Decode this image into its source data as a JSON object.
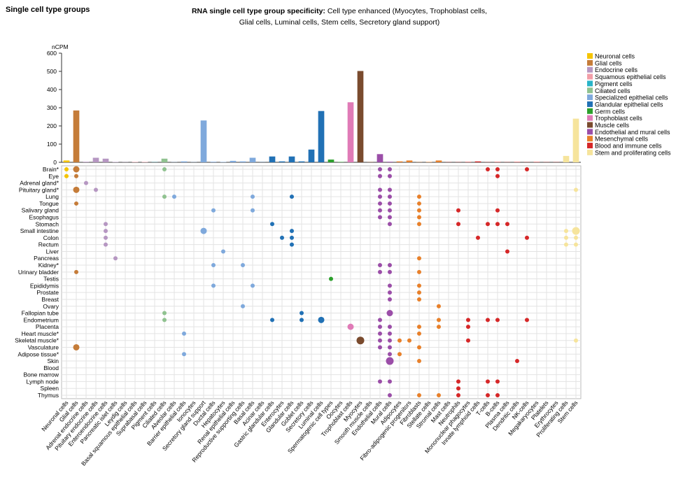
{
  "panel_title": "Single cell type groups",
  "chart_title_prefix": "RNA single cell type group specificity:",
  "chart_title_rest": " Cell type enhanced (Myocytes, Trophoblast cells, Glial cells, Luminal cells, Stem cells, Secretory gland support)",
  "chart_data": {
    "type": "bar",
    "ylabel": "nCPM",
    "ylim": [
      0,
      600
    ],
    "yticks": [
      0,
      100,
      200,
      300,
      400,
      500,
      600
    ],
    "legend_position": "right",
    "legend": [
      {
        "name": "Neuronal cells",
        "color": "#f5c400"
      },
      {
        "name": "Glial cells",
        "color": "#c57c39"
      },
      {
        "name": "Endocrine cells",
        "color": "#b697c2"
      },
      {
        "name": "Squamous epithelial cells",
        "color": "#f29ea8"
      },
      {
        "name": "Pigment cells",
        "color": "#28b4c8"
      },
      {
        "name": "Ciliated cells",
        "color": "#90c290"
      },
      {
        "name": "Specialized epithelial cells",
        "color": "#7fa9dc"
      },
      {
        "name": "Glandular epithelial cells",
        "color": "#2171b5"
      },
      {
        "name": "Germ cells",
        "color": "#2ca02c"
      },
      {
        "name": "Trophoblast cells",
        "color": "#e07bb7"
      },
      {
        "name": "Muscle cells",
        "color": "#7a4b2e"
      },
      {
        "name": "Endothelial and mural cells",
        "color": "#9b4ea8"
      },
      {
        "name": "Mesenchymal cells",
        "color": "#e8802a"
      },
      {
        "name": "Blood and immune cells",
        "color": "#d62728"
      },
      {
        "name": "Stem and proliferating cells",
        "color": "#f6e49c"
      }
    ],
    "categories": [
      "Neuronal cells",
      "Glial cells",
      "Adrenal endocrine cells",
      "Pituitary endocrine cells",
      "Enteroendocrine cells",
      "Pancreatic islet cells",
      "Leydig cells",
      "Basal squamous epithelial cells",
      "Suprabasal cells",
      "Pigment cells",
      "Ciliated cells",
      "Alveolar cells",
      "Barrier epithelial cells",
      "Ionocytes",
      "Secretory gland support",
      "Ductal cells",
      "Hepatocytes",
      "Renal epithelial cells",
      "Reproductive supporting cells",
      "Basal cells",
      "Acinar cells",
      "Gastric glandular cells",
      "Enterocytes",
      "Glandular cells",
      "Goblet cells",
      "Secretory cells",
      "Luminal cells",
      "Spermatogenic cell types",
      "Oocytes",
      "Trophoblast cells",
      "Myocytes",
      "Smooth muscle cells",
      "Endothelial cells",
      "Mural cells",
      "Adipocytes",
      "Fibro-adipogenic progenitors",
      "Fibroblasts",
      "Stellate cells",
      "Stromal cells",
      "Mast cells",
      "Neutrophils",
      "Mononuclear phagocytes",
      "Innate lymphoid cells",
      "T-cells",
      "B-cells",
      "Plasma cells",
      "Dendritic cells",
      "NK-cells",
      "Megakaryocytes",
      "Platelets",
      "Erythrocytes",
      "Proliferating cells",
      "Stem cells"
    ],
    "category_groups": [
      0,
      1,
      2,
      2,
      2,
      2,
      2,
      3,
      3,
      4,
      5,
      6,
      6,
      6,
      6,
      6,
      6,
      6,
      6,
      6,
      7,
      7,
      7,
      7,
      7,
      7,
      7,
      8,
      8,
      9,
      10,
      10,
      11,
      11,
      12,
      12,
      12,
      12,
      12,
      13,
      13,
      13,
      13,
      13,
      13,
      13,
      13,
      13,
      13,
      13,
      13,
      14,
      14
    ],
    "values": [
      10,
      285,
      3,
      25,
      20,
      2,
      1,
      2,
      2,
      1,
      20,
      1,
      5,
      1,
      230,
      3,
      2,
      8,
      5,
      25,
      1,
      32,
      5,
      32,
      5,
      70,
      282,
      15,
      2,
      330,
      502,
      2,
      45,
      3,
      5,
      10,
      1,
      2,
      10,
      1,
      1,
      2,
      5,
      1,
      2,
      1,
      2,
      1,
      2,
      1,
      1,
      35,
      240
    ],
    "tissues": [
      "Brain*",
      "Eye",
      "Adrenal gland*",
      "Pituitary gland*",
      "Lung",
      "Tongue",
      "Salivary gland",
      "Esophagus",
      "Stomach",
      "Small intestine",
      "Colon",
      "Rectum",
      "Liver",
      "Pancreas",
      "Kidney*",
      "Urinary bladder",
      "Testis",
      "Epididymis",
      "Prostate",
      "Breast",
      "Ovary",
      "Fallopian tube",
      "Endometrium",
      "Placenta",
      "Heart muscle*",
      "Skeletal muscle*",
      "Vasculature",
      "Adipose tissue*",
      "Skin",
      "Blood",
      "Bone marrow",
      "Lymph node",
      "Spleen",
      "Thymus"
    ],
    "dots": [
      [
        0,
        0,
        1
      ],
      [
        0,
        1,
        2
      ],
      [
        0,
        10,
        1
      ],
      [
        0,
        32,
        1
      ],
      [
        0,
        33,
        1
      ],
      [
        0,
        43,
        1
      ],
      [
        0,
        44,
        1
      ],
      [
        0,
        47,
        1
      ],
      [
        1,
        0,
        1
      ],
      [
        1,
        1,
        1
      ],
      [
        1,
        32,
        1
      ],
      [
        1,
        33,
        1
      ],
      [
        1,
        44,
        1
      ],
      [
        2,
        2,
        1
      ],
      [
        3,
        1,
        2
      ],
      [
        3,
        3,
        1
      ],
      [
        3,
        32,
        1
      ],
      [
        3,
        33,
        1
      ],
      [
        3,
        52,
        1
      ],
      [
        4,
        10,
        1
      ],
      [
        4,
        11,
        1
      ],
      [
        4,
        19,
        1
      ],
      [
        4,
        23,
        1
      ],
      [
        4,
        32,
        1
      ],
      [
        4,
        33,
        1
      ],
      [
        4,
        36,
        1
      ],
      [
        5,
        1,
        1
      ],
      [
        5,
        32,
        1
      ],
      [
        5,
        33,
        1
      ],
      [
        5,
        36,
        1
      ],
      [
        6,
        15,
        1
      ],
      [
        6,
        19,
        1
      ],
      [
        6,
        32,
        1
      ],
      [
        6,
        33,
        1
      ],
      [
        6,
        36,
        1
      ],
      [
        6,
        40,
        1
      ],
      [
        6,
        44,
        1
      ],
      [
        7,
        32,
        1
      ],
      [
        7,
        33,
        1
      ],
      [
        7,
        36,
        1
      ],
      [
        8,
        4,
        1
      ],
      [
        8,
        21,
        1
      ],
      [
        8,
        33,
        1
      ],
      [
        8,
        36,
        1
      ],
      [
        8,
        40,
        1
      ],
      [
        8,
        43,
        1
      ],
      [
        8,
        44,
        1
      ],
      [
        8,
        45,
        1
      ],
      [
        9,
        4,
        1
      ],
      [
        9,
        14,
        2
      ],
      [
        9,
        23,
        1
      ],
      [
        9,
        51,
        1
      ],
      [
        9,
        52,
        3
      ],
      [
        10,
        4,
        1
      ],
      [
        10,
        22,
        1
      ],
      [
        10,
        23,
        1
      ],
      [
        10,
        42,
        1
      ],
      [
        10,
        47,
        1
      ],
      [
        10,
        51,
        1
      ],
      [
        10,
        52,
        1
      ],
      [
        11,
        4,
        1
      ],
      [
        11,
        23,
        1
      ],
      [
        11,
        51,
        1
      ],
      [
        11,
        52,
        1
      ],
      [
        12,
        16,
        1
      ],
      [
        12,
        45,
        1
      ],
      [
        13,
        5,
        1
      ],
      [
        13,
        36,
        1
      ],
      [
        14,
        15,
        1
      ],
      [
        14,
        18,
        1
      ],
      [
        14,
        32,
        1
      ],
      [
        14,
        33,
        1
      ],
      [
        15,
        1,
        1
      ],
      [
        15,
        32,
        1
      ],
      [
        15,
        33,
        1
      ],
      [
        15,
        36,
        1
      ],
      [
        16,
        27,
        1
      ],
      [
        17,
        15,
        1
      ],
      [
        17,
        19,
        1
      ],
      [
        17,
        33,
        1
      ],
      [
        17,
        36,
        1
      ],
      [
        18,
        33,
        1
      ],
      [
        18,
        36,
        1
      ],
      [
        19,
        33,
        1
      ],
      [
        19,
        36,
        1
      ],
      [
        20,
        18,
        1
      ],
      [
        20,
        38,
        1
      ],
      [
        21,
        10,
        1
      ],
      [
        21,
        24,
        1
      ],
      [
        21,
        33,
        2
      ],
      [
        22,
        10,
        1
      ],
      [
        22,
        21,
        1
      ],
      [
        22,
        24,
        1
      ],
      [
        22,
        26,
        2
      ],
      [
        22,
        32,
        1
      ],
      [
        22,
        38,
        1
      ],
      [
        22,
        41,
        1
      ],
      [
        22,
        43,
        1
      ],
      [
        22,
        44,
        1
      ],
      [
        22,
        47,
        1
      ],
      [
        23,
        29,
        2
      ],
      [
        23,
        32,
        1
      ],
      [
        23,
        33,
        1
      ],
      [
        23,
        36,
        1
      ],
      [
        23,
        38,
        1
      ],
      [
        23,
        41,
        1
      ],
      [
        24,
        12,
        1
      ],
      [
        24,
        32,
        1
      ],
      [
        24,
        33,
        1
      ],
      [
        24,
        36,
        1
      ],
      [
        25,
        30,
        3
      ],
      [
        25,
        32,
        1
      ],
      [
        25,
        33,
        1
      ],
      [
        25,
        34,
        1
      ],
      [
        25,
        35,
        1
      ],
      [
        25,
        41,
        1
      ],
      [
        25,
        52,
        1
      ],
      [
        26,
        1,
        2
      ],
      [
        26,
        32,
        1
      ],
      [
        26,
        33,
        1
      ],
      [
        26,
        36,
        1
      ],
      [
        27,
        12,
        1
      ],
      [
        27,
        33,
        1
      ],
      [
        27,
        34,
        1
      ],
      [
        28,
        33,
        3
      ],
      [
        28,
        36,
        1
      ],
      [
        28,
        46,
        1
      ],
      [
        31,
        32,
        1
      ],
      [
        31,
        33,
        1
      ],
      [
        31,
        40,
        1
      ],
      [
        31,
        43,
        1
      ],
      [
        31,
        44,
        1
      ],
      [
        32,
        40,
        1
      ],
      [
        33,
        33,
        1
      ],
      [
        33,
        36,
        1
      ],
      [
        33,
        38,
        1
      ],
      [
        33,
        40,
        1
      ],
      [
        33,
        43,
        1
      ],
      [
        33,
        44,
        1
      ]
    ]
  }
}
